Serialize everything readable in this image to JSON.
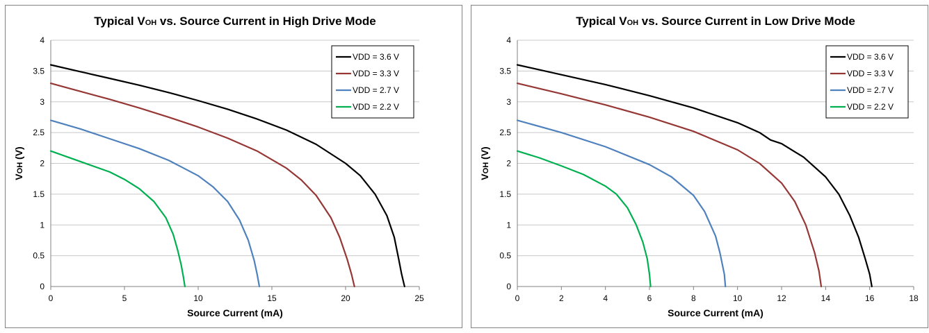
{
  "chart_data": [
    {
      "type": "line",
      "title_main": "Typical V",
      "title_sub": "OH",
      "title_rest": " vs. Source Current in High Drive Mode",
      "xlabel": "Source Current (mA)",
      "ylabel_main": "V",
      "ylabel_sub": "OH",
      "ylabel_rest": " (V)",
      "xlim": [
        0,
        25
      ],
      "ylim": [
        0,
        4
      ],
      "xticks": [
        0,
        5,
        10,
        15,
        20,
        25
      ],
      "yticks": [
        0,
        0.5,
        1,
        1.5,
        2,
        2.5,
        3,
        3.5,
        4
      ],
      "grid": true,
      "legend_position": "top-right",
      "series": [
        {
          "name": "VDD = 3.6 V",
          "color": "#000000",
          "x": [
            0,
            2,
            4,
            6,
            8,
            10,
            12,
            14,
            16,
            18,
            20,
            21,
            22,
            22.8,
            23.3,
            23.6,
            23.8,
            24.0
          ],
          "y": [
            3.6,
            3.49,
            3.38,
            3.27,
            3.15,
            3.02,
            2.88,
            2.72,
            2.54,
            2.31,
            2.0,
            1.8,
            1.5,
            1.15,
            0.8,
            0.45,
            0.2,
            0.0
          ]
        },
        {
          "name": "VDD = 3.3 V",
          "color": "#953735",
          "x": [
            0,
            2,
            4,
            6,
            8,
            10,
            12,
            14,
            16,
            17,
            18,
            19,
            19.6,
            20.1,
            20.4,
            20.6
          ],
          "y": [
            3.3,
            3.17,
            3.04,
            2.9,
            2.75,
            2.59,
            2.41,
            2.2,
            1.92,
            1.73,
            1.48,
            1.12,
            0.8,
            0.45,
            0.2,
            0.0
          ]
        },
        {
          "name": "VDD = 2.7 V",
          "color": "#4F81BD",
          "x": [
            0,
            2,
            4,
            6,
            8,
            10,
            11,
            12,
            12.8,
            13.4,
            13.8,
            14.0,
            14.15
          ],
          "y": [
            2.7,
            2.56,
            2.4,
            2.24,
            2.05,
            1.8,
            1.62,
            1.38,
            1.08,
            0.75,
            0.42,
            0.2,
            0.0
          ]
        },
        {
          "name": "VDD = 2.2 V",
          "color": "#00B050",
          "x": [
            0,
            2,
            4,
            5,
            6,
            7,
            7.8,
            8.3,
            8.6,
            8.85,
            9.0,
            9.1
          ],
          "y": [
            2.2,
            2.03,
            1.86,
            1.74,
            1.59,
            1.38,
            1.12,
            0.85,
            0.6,
            0.35,
            0.15,
            0.0
          ]
        }
      ]
    },
    {
      "type": "line",
      "title_main": "Typical V",
      "title_sub": "OH",
      "title_rest": " vs. Source Current in Low Drive Mode",
      "xlabel": "Source Current (mA)",
      "ylabel_main": "V",
      "ylabel_sub": "OH",
      "ylabel_rest": " (V)",
      "xlim": [
        0,
        18
      ],
      "ylim": [
        0,
        4
      ],
      "xticks": [
        0,
        2,
        4,
        6,
        8,
        10,
        12,
        14,
        16,
        18
      ],
      "yticks": [
        0,
        0.5,
        1,
        1.5,
        2,
        2.5,
        3,
        3.5,
        4
      ],
      "grid": true,
      "legend_position": "top-right",
      "series": [
        {
          "name": "VDD = 3.6 V",
          "color": "#000000",
          "x": [
            0,
            2,
            4,
            6,
            8,
            10,
            11,
            11.5,
            12,
            13,
            14,
            14.6,
            15.1,
            15.5,
            15.8,
            16.0,
            16.1
          ],
          "y": [
            3.6,
            3.44,
            3.28,
            3.1,
            2.9,
            2.66,
            2.5,
            2.38,
            2.32,
            2.1,
            1.78,
            1.5,
            1.15,
            0.8,
            0.45,
            0.2,
            0.0
          ]
        },
        {
          "name": "VDD = 3.3 V",
          "color": "#953735",
          "x": [
            0,
            2,
            4,
            6,
            8,
            10,
            11,
            12,
            12.6,
            13.1,
            13.5,
            13.7,
            13.8
          ],
          "y": [
            3.3,
            3.13,
            2.95,
            2.75,
            2.52,
            2.22,
            2.0,
            1.68,
            1.38,
            1.0,
            0.55,
            0.25,
            0.0
          ]
        },
        {
          "name": "VDD = 2.7 V",
          "color": "#4F81BD",
          "x": [
            0,
            2,
            4,
            6,
            7,
            8,
            8.5,
            9.0,
            9.2,
            9.4,
            9.45
          ],
          "y": [
            2.7,
            2.5,
            2.27,
            1.98,
            1.78,
            1.48,
            1.22,
            0.82,
            0.55,
            0.2,
            0.0
          ]
        },
        {
          "name": "VDD = 2.2 V",
          "color": "#00B050",
          "x": [
            0,
            1,
            2,
            3,
            4,
            4.5,
            5,
            5.4,
            5.7,
            5.9,
            6.0,
            6.05
          ],
          "y": [
            2.2,
            2.09,
            1.96,
            1.82,
            1.63,
            1.5,
            1.28,
            1.0,
            0.72,
            0.45,
            0.2,
            0.0
          ]
        }
      ]
    }
  ]
}
